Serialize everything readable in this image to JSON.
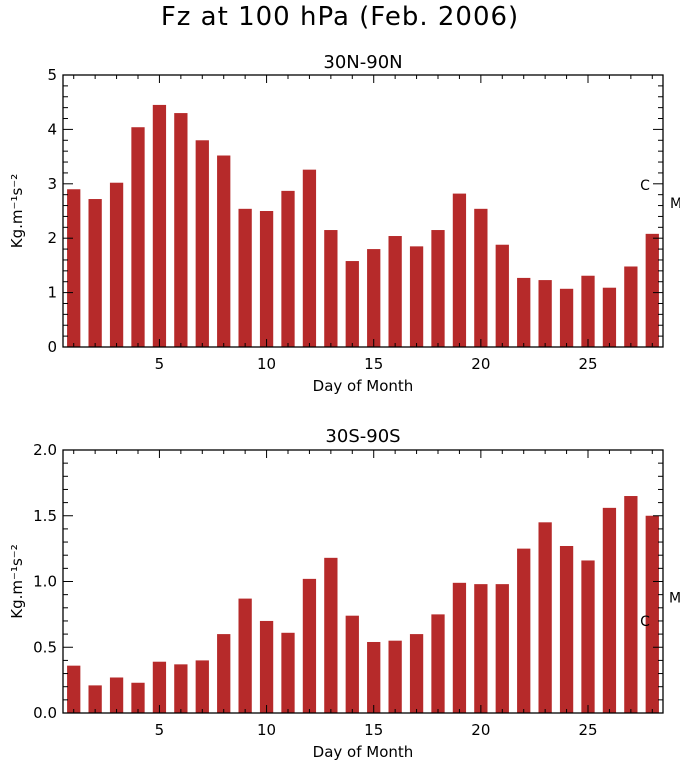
{
  "title": "Fz at 100 hPa (Feb. 2006)",
  "chart_data": [
    {
      "type": "bar",
      "title": "30N-90N",
      "xlabel": "Day of Month",
      "ylabel": "Kg.m⁻¹s⁻²",
      "xlim": [
        0.5,
        28.5
      ],
      "ylim": [
        0,
        5
      ],
      "x_ticks": [
        5,
        10,
        15,
        20,
        25
      ],
      "y_ticks": [
        0,
        1,
        2,
        3,
        4,
        5
      ],
      "y_tick_labels": [
        "0",
        "1",
        "2",
        "3",
        "4",
        "5"
      ],
      "days": [
        1,
        2,
        3,
        4,
        5,
        6,
        7,
        8,
        9,
        10,
        11,
        12,
        13,
        14,
        15,
        16,
        17,
        18,
        19,
        20,
        21,
        22,
        23,
        24,
        25,
        26,
        27,
        28
      ],
      "values": [
        2.9,
        2.72,
        3.02,
        4.04,
        4.45,
        4.3,
        3.8,
        3.52,
        2.54,
        2.5,
        2.87,
        3.26,
        2.15,
        1.58,
        1.8,
        2.04,
        1.85,
        2.15,
        2.82,
        2.54,
        1.88,
        1.27,
        1.23,
        1.07,
        1.31,
        1.09,
        1.48,
        2.08
      ],
      "color": "#b62a2a",
      "markers": [
        {
          "label": "C",
          "value": 2.98
        },
        {
          "label": "M",
          "value": 2.65
        }
      ]
    },
    {
      "type": "bar",
      "title": "30S-90S",
      "xlabel": "Day of Month",
      "ylabel": "Kg.m⁻¹s⁻²",
      "xlim": [
        0.5,
        28.5
      ],
      "ylim": [
        0,
        2
      ],
      "x_ticks": [
        5,
        10,
        15,
        20,
        25
      ],
      "y_ticks": [
        0,
        0.5,
        1,
        1.5,
        2
      ],
      "y_tick_labels": [
        "0.0",
        "0.5",
        "1.0",
        "1.5",
        "2.0"
      ],
      "days": [
        1,
        2,
        3,
        4,
        5,
        6,
        7,
        8,
        9,
        10,
        11,
        12,
        13,
        14,
        15,
        16,
        17,
        18,
        19,
        20,
        21,
        22,
        23,
        24,
        25,
        26,
        27,
        28
      ],
      "values": [
        0.36,
        0.21,
        0.27,
        0.23,
        0.39,
        0.37,
        0.4,
        0.6,
        0.87,
        0.7,
        0.61,
        1.02,
        1.18,
        0.74,
        0.54,
        0.55,
        0.6,
        0.75,
        0.99,
        0.98,
        0.98,
        1.25,
        1.45,
        1.27,
        1.16,
        1.56,
        1.65,
        1.5
      ],
      "color": "#b62a2a",
      "markers": [
        {
          "label": "C",
          "value": 0.7
        },
        {
          "label": "M",
          "value": 0.88
        }
      ]
    }
  ]
}
